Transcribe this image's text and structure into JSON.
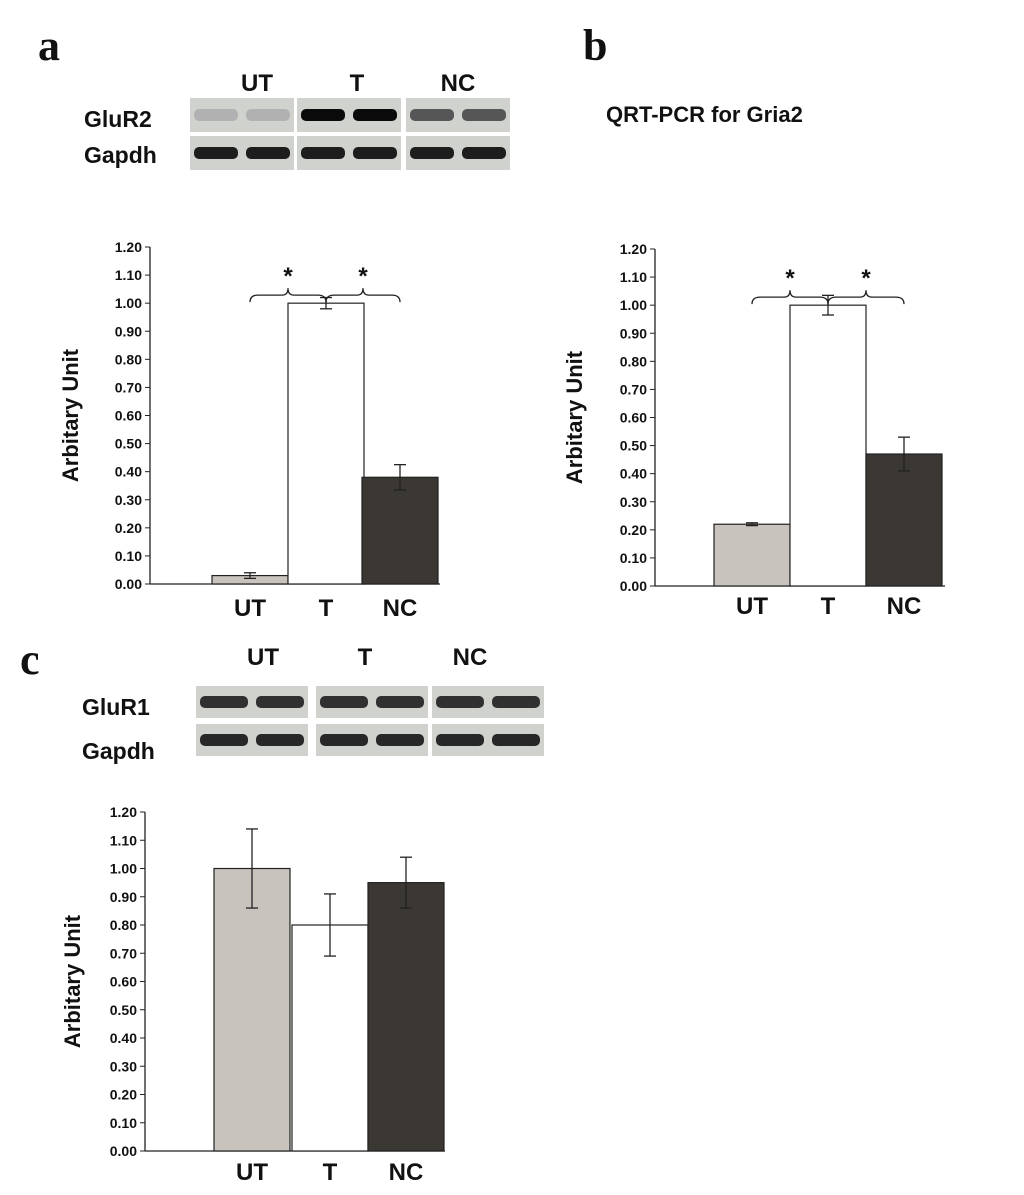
{
  "panels": {
    "a": {
      "letter": "a",
      "blot": {
        "lanes": [
          "UT",
          "T",
          "NC"
        ],
        "rows": [
          {
            "label": "GluR2",
            "intensity": [
              0.12,
              1.0,
              0.6
            ]
          },
          {
            "label": "Gapdh",
            "intensity": [
              0.9,
              0.9,
              0.9
            ]
          }
        ]
      }
    },
    "b": {
      "letter": "b",
      "title": "QRT-PCR for Gria2"
    },
    "c": {
      "letter": "c",
      "blot": {
        "lanes": [
          "UT",
          "T",
          "NC"
        ],
        "rows": [
          {
            "label": "GluR1",
            "intensity": [
              0.8,
              0.8,
              0.8
            ]
          },
          {
            "label": "Gapdh",
            "intensity": [
              0.85,
              0.85,
              0.85
            ]
          }
        ]
      }
    }
  },
  "chart_data": [
    {
      "panel": "a",
      "type": "bar",
      "categories": [
        "UT",
        "T",
        "NC"
      ],
      "values": [
        0.03,
        1.0,
        0.38
      ],
      "errors": [
        0.01,
        0.02,
        0.045
      ],
      "ylabel": "Arbitary Unit",
      "ylim": [
        0,
        1.2
      ],
      "yticks_step": 0.1,
      "yticks": [
        "0.00",
        "0.10",
        "0.20",
        "0.30",
        "0.40",
        "0.50",
        "0.60",
        "0.70",
        "0.80",
        "0.90",
        "1.00",
        "1.10",
        "1.20"
      ],
      "colors": [
        "#c9c3be",
        "#ffffff",
        "#3b3733"
      ],
      "significance": [
        {
          "between": [
            "UT",
            "T"
          ],
          "label": "*"
        },
        {
          "between": [
            "T",
            "NC"
          ],
          "label": "*"
        }
      ]
    },
    {
      "panel": "b",
      "type": "bar",
      "categories": [
        "UT",
        "T",
        "NC"
      ],
      "values": [
        0.22,
        1.0,
        0.47
      ],
      "errors": [
        0.005,
        0.035,
        0.06
      ],
      "ylabel": "Arbitary Unit",
      "ylim": [
        0,
        1.2
      ],
      "yticks_step": 0.1,
      "yticks": [
        "0.00",
        "0.10",
        "0.20",
        "0.30",
        "0.40",
        "0.50",
        "0.60",
        "0.70",
        "0.80",
        "0.90",
        "1.00",
        "1.10",
        "1.20"
      ],
      "colors": [
        "#c9c3be",
        "#ffffff",
        "#3b3733"
      ],
      "significance": [
        {
          "between": [
            "UT",
            "T"
          ],
          "label": "*"
        },
        {
          "between": [
            "T",
            "NC"
          ],
          "label": "*"
        }
      ]
    },
    {
      "panel": "c",
      "type": "bar",
      "categories": [
        "UT",
        "T",
        "NC"
      ],
      "values": [
        1.0,
        0.8,
        0.95
      ],
      "errors": [
        0.14,
        0.11,
        0.09
      ],
      "ylabel": "Arbitary Unit",
      "ylim": [
        0,
        1.2
      ],
      "yticks_step": 0.1,
      "yticks": [
        "0.00",
        "0.10",
        "0.20",
        "0.30",
        "0.40",
        "0.50",
        "0.60",
        "0.70",
        "0.80",
        "0.90",
        "1.00",
        "1.10",
        "1.20"
      ],
      "colors": [
        "#c9c3be",
        "#ffffff",
        "#3b3733"
      ],
      "significance": []
    }
  ]
}
